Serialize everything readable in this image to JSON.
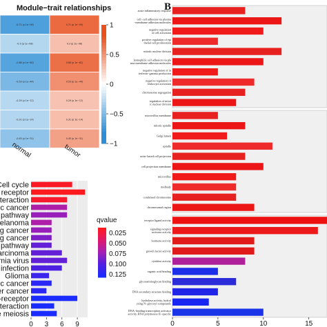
{
  "panel_b_letter": "B",
  "chart_data": [
    {
      "type": "heatmap",
      "title": "Module−trait relationships",
      "columns": [
        "normal",
        "tumor"
      ],
      "rows": 7,
      "values": [
        [
          -0.71,
          0.71
        ],
        [
          -0.3,
          0.3
        ],
        [
          -0.68,
          0.68
        ],
        [
          -0.53,
          0.53
        ],
        [
          -0.29,
          0.29
        ],
        [
          -0.31,
          0.31
        ],
        [
          -0.45,
          0.45
        ]
      ],
      "cell_labels": [
        [
          "-0.71 (p 1e−09)",
          "0.71 (p 1e−09)"
        ],
        [
          "-0.3 (p 1e−08)",
          "0.3 (p 1e−08)"
        ],
        [
          "-0.68 (p 1e−62)",
          "0.68 (p 1e−62)"
        ],
        [
          "-0.53 (p 1e−44)",
          "0.53 (p 1e−44)"
        ],
        [
          "-0.29 (p 1e−12)",
          "0.29 (p 1e−12)"
        ],
        [
          "-0.31 (p 1e−14)",
          "0.31 (p 1e−14)"
        ],
        [
          "-0.45 (p 1e−31)",
          "0.45 (p 1e−31)"
        ]
      ],
      "colorbar_ticks": [
        "1",
        "0.5",
        "0",
        "−0.5",
        "−1"
      ],
      "color_range": [
        -1,
        1
      ],
      "colors": {
        "neg": "#2f8fd6",
        "mid": "#ffffff",
        "pos": "#e8501e"
      }
    },
    {
      "type": "bar",
      "orientation": "horizontal",
      "categories": [
        "Cell cycle",
        "e receptor",
        "interaction",
        "tric cancer",
        "g pathway",
        "Melanoma",
        "ng cancer",
        "ng cancer",
        "ng pathway",
        "carcinoma",
        "emia virus",
        "1 infection",
        "Glioma",
        "atic cancer",
        "der cancer",
        "—receptor",
        "interaction",
        "te meiosis"
      ],
      "values": [
        8,
        10.5,
        7,
        7,
        7,
        4,
        4,
        4,
        4,
        6,
        7,
        6,
        3.5,
        4,
        3,
        9,
        4.5,
        5
      ],
      "qvalue": [
        0.005,
        0.002,
        0.008,
        0.06,
        0.07,
        0.06,
        0.07,
        0.08,
        0.09,
        0.09,
        0.09,
        0.1,
        0.11,
        0.12,
        0.12,
        0.13,
        0.13,
        0.13
      ],
      "xticks": [
        "0",
        "3",
        "6",
        "9"
      ],
      "xlim": [
        0,
        11
      ],
      "legend": {
        "title": "qvalue",
        "ticks": [
          "0.025",
          "0.050",
          "0.075",
          "0.100",
          "0.125"
        ],
        "placement": "right"
      }
    },
    {
      "type": "bar",
      "orientation": "horizontal",
      "xticks": [
        "0",
        "5",
        "10",
        "15"
      ],
      "xlim": [
        0,
        17
      ],
      "groups": [
        {
          "categories": [
            "acute inflammatory response",
            "cell−cell adhesion via plasma−membrane adhesion molecules",
            "negative regulation of cell activation",
            "positive regulation of epithelial cell proliferation",
            "mitotic nuclear division",
            "homophilic cell adhesion via plasma membrane adhesion molecules",
            "negative regulation of interferon−gamma production",
            "negative regulation of leukocyte activation",
            "chromosome segregation",
            "regulation of mitotic nuclear division"
          ],
          "values": [
            8,
            12,
            10,
            5,
            12,
            10,
            5,
            9,
            8,
            7
          ]
        },
        {
          "categories": [
            "microvillus membrane",
            "mitotic spindle",
            "Golgi lumen",
            "spindle",
            "actin−based cell projection",
            "cell projection membrane",
            "microvillus",
            "midbody",
            "condensed chromosome",
            "chromosomal region"
          ],
          "values": [
            5,
            8,
            6,
            11,
            8,
            10,
            7,
            7,
            7,
            9
          ]
        },
        {
          "categories": [
            "receptor ligand activity",
            "signaling receptor activator activity",
            "hormone activity",
            "growth factor activity",
            "cytokine activity",
            "organic acid binding",
            "glycosaminoglycan binding",
            "DNA secondary structure binding",
            "hydrolase activity, hydrolyzing N−glycosyl compounds",
            "DNA−binding transcription activator activity, RNA polymerase II−specific"
          ],
          "values": [
            17,
            16,
            9,
            9,
            8,
            5,
            7,
            5,
            4,
            10
          ]
        }
      ]
    }
  ]
}
